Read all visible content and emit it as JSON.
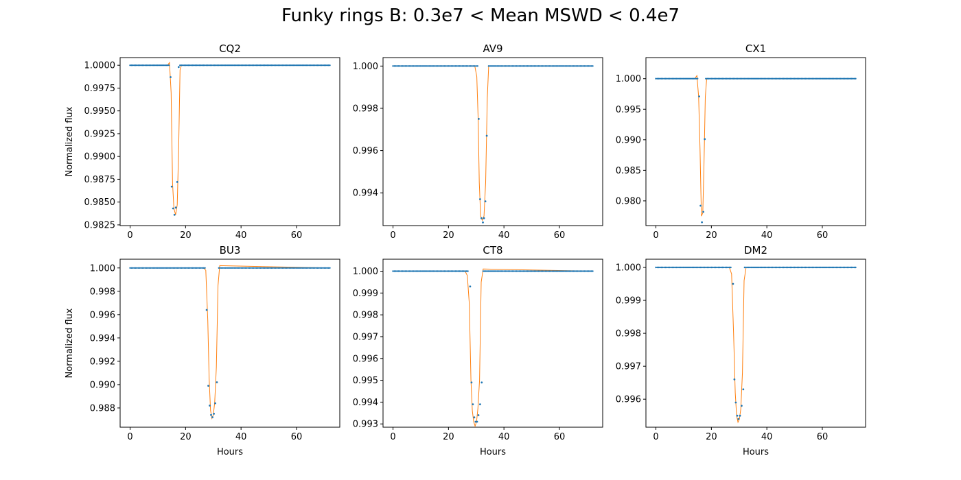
{
  "figure": {
    "suptitle": "Funky rings B: 0.3e7 < Mean MSWD < 0.4e7"
  },
  "colors": {
    "points": "#1f77b4",
    "fit": "#ff7f0e",
    "axes": "#000000"
  },
  "chart_data": [
    {
      "type": "scatter",
      "title": "CQ2",
      "xlabel": "",
      "ylabel": "Normalized flux",
      "xlim": [
        -3.6,
        75.6
      ],
      "ylim": [
        0.98242,
        1.00084
      ],
      "xticks": [
        0,
        20,
        40,
        60
      ],
      "yticks": [
        0.9825,
        0.985,
        0.9875,
        0.99,
        0.9925,
        0.995,
        0.9975,
        1.0
      ],
      "ytick_labels": [
        "0.9825",
        "0.9850",
        "0.9875",
        "0.9900",
        "0.9925",
        "0.9950",
        "0.9975",
        "1.0000"
      ],
      "baseline": 1.0,
      "fit_x": [
        13.5,
        14.2,
        14.8,
        15.3,
        15.8,
        16.4,
        17.0,
        17.5,
        18.0,
        18.5
      ],
      "fit_y": [
        1.0,
        1.0003,
        0.997,
        0.987,
        0.9843,
        0.9836,
        0.9847,
        0.991,
        0.9995,
        1.0
      ],
      "dip_x": [
        14.6,
        15.0,
        15.5,
        16.0,
        16.5,
        17.0,
        17.5
      ],
      "dip_y": [
        0.9987,
        0.9867,
        0.9843,
        0.9836,
        0.9844,
        0.9872,
        0.9998
      ]
    },
    {
      "type": "scatter",
      "title": "AV9",
      "xlabel": "",
      "ylabel": "",
      "xlim": [
        -3.6,
        75.6
      ],
      "ylim": [
        0.99245,
        1.0004
      ],
      "xticks": [
        0,
        20,
        40,
        60
      ],
      "yticks": [
        0.994,
        0.996,
        0.998,
        1.0
      ],
      "ytick_labels": [
        "0.994",
        "0.996",
        "0.998",
        "1.000"
      ],
      "baseline": 1.0,
      "fit_x": [
        29.5,
        30.2,
        30.7,
        31.1,
        31.6,
        32.2,
        32.8,
        33.4,
        34.0,
        34.5
      ],
      "fit_y": [
        1.0,
        0.9995,
        0.9975,
        0.9945,
        0.9929,
        0.9927,
        0.9929,
        0.9945,
        0.9985,
        1.0
      ],
      "dip_x": [
        30.9,
        31.4,
        31.9,
        32.4,
        32.8,
        33.3,
        33.8
      ],
      "dip_y": [
        0.9975,
        0.9937,
        0.9928,
        0.9926,
        0.9928,
        0.9936,
        0.9967
      ]
    },
    {
      "type": "scatter",
      "title": "CX1",
      "xlabel": "",
      "ylabel": "",
      "xlim": [
        -3.6,
        75.6
      ],
      "ylim": [
        0.97595,
        1.00345
      ],
      "xticks": [
        0,
        20,
        40,
        60
      ],
      "yticks": [
        0.98,
        0.985,
        0.99,
        0.995,
        1.0
      ],
      "ytick_labels": [
        "0.980",
        "0.985",
        "0.990",
        "0.995",
        "1.000"
      ],
      "baseline": 1.0,
      "fit_x": [
        14.0,
        14.8,
        15.4,
        15.9,
        16.4,
        16.9,
        17.3,
        17.8,
        18.3
      ],
      "fit_y": [
        1.0,
        1.0005,
        0.997,
        0.9885,
        0.9775,
        0.978,
        0.985,
        0.997,
        1.0
      ],
      "dip_x": [
        15.6,
        16.1,
        16.6,
        17.1,
        17.6
      ],
      "dip_y": [
        0.9971,
        0.9792,
        0.9765,
        0.9782,
        0.9901
      ]
    },
    {
      "type": "scatter",
      "title": "BU3",
      "xlabel": "Hours",
      "ylabel": "Normalized flux",
      "xlim": [
        -3.6,
        75.6
      ],
      "ylim": [
        0.98635,
        1.00075
      ],
      "xticks": [
        0,
        20,
        40,
        60
      ],
      "yticks": [
        0.988,
        0.99,
        0.992,
        0.994,
        0.996,
        0.998,
        1.0
      ],
      "ytick_labels": [
        "0.988",
        "0.990",
        "0.992",
        "0.994",
        "0.996",
        "0.998",
        "1.000"
      ],
      "baseline": 1.0,
      "fit_x": [
        26.5,
        27.3,
        28.0,
        28.5,
        29.0,
        29.5,
        30.0,
        30.5,
        31.1,
        31.7,
        32.3
      ],
      "fit_y": [
        1.0,
        0.9998,
        0.9955,
        0.9905,
        0.9878,
        0.9871,
        0.9874,
        0.9885,
        0.9915,
        0.9985,
        1.0002
      ],
      "dip_x": [
        27.6,
        28.2,
        28.7,
        29.2,
        29.7,
        30.2,
        30.7,
        31.3
      ],
      "dip_y": [
        0.9964,
        0.9899,
        0.9882,
        0.9874,
        0.9872,
        0.9875,
        0.9884,
        0.9902
      ]
    },
    {
      "type": "scatter",
      "title": "CT8",
      "xlabel": "Hours",
      "ylabel": "",
      "xlim": [
        -3.6,
        75.6
      ],
      "ylim": [
        0.99285,
        1.00055
      ],
      "xticks": [
        0,
        20,
        40,
        60
      ],
      "yticks": [
        0.993,
        0.994,
        0.995,
        0.996,
        0.997,
        0.998,
        0.999,
        1.0
      ],
      "ytick_labels": [
        "0.993",
        "0.994",
        "0.995",
        "0.996",
        "0.997",
        "0.998",
        "0.999",
        "1.000"
      ],
      "baseline": 1.0,
      "fit_x": [
        26.0,
        26.8,
        27.5,
        28.1,
        28.6,
        29.1,
        29.6,
        30.1,
        30.6,
        31.2,
        31.8,
        32.5
      ],
      "fit_y": [
        1.0,
        0.9998,
        0.9985,
        0.995,
        0.9936,
        0.9931,
        0.9929,
        0.9931,
        0.9937,
        0.995,
        0.9995,
        1.0001
      ],
      "dip_x": [
        27.8,
        28.3,
        28.8,
        29.3,
        29.8,
        30.3,
        30.8,
        31.4,
        32.0
      ],
      "dip_y": [
        0.9993,
        0.9949,
        0.9939,
        0.9933,
        0.9931,
        0.9931,
        0.9934,
        0.9939,
        0.9949
      ]
    },
    {
      "type": "scatter",
      "title": "DM2",
      "xlabel": "Hours",
      "ylabel": "",
      "xlim": [
        -3.6,
        75.6
      ],
      "ylim": [
        0.99515,
        1.00025
      ],
      "xticks": [
        0,
        20,
        40,
        60
      ],
      "yticks": [
        0.996,
        0.997,
        0.998,
        0.999,
        1.0
      ],
      "ytick_labels": [
        "0.996",
        "0.997",
        "0.998",
        "0.999",
        "1.000"
      ],
      "baseline": 1.0,
      "fit_x": [
        26.5,
        27.3,
        28.0,
        28.6,
        29.1,
        29.6,
        30.1,
        30.6,
        31.2,
        31.8,
        32.5
      ],
      "fit_y": [
        1.0,
        0.9998,
        0.998,
        0.9962,
        0.9955,
        0.9953,
        0.9954,
        0.9957,
        0.9968,
        0.9996,
        1.0
      ],
      "dip_x": [
        27.8,
        28.3,
        28.8,
        29.3,
        29.8,
        30.3,
        30.9,
        31.5
      ],
      "dip_y": [
        0.9995,
        0.9966,
        0.9959,
        0.9955,
        0.9954,
        0.9955,
        0.9958,
        0.9963
      ]
    }
  ]
}
